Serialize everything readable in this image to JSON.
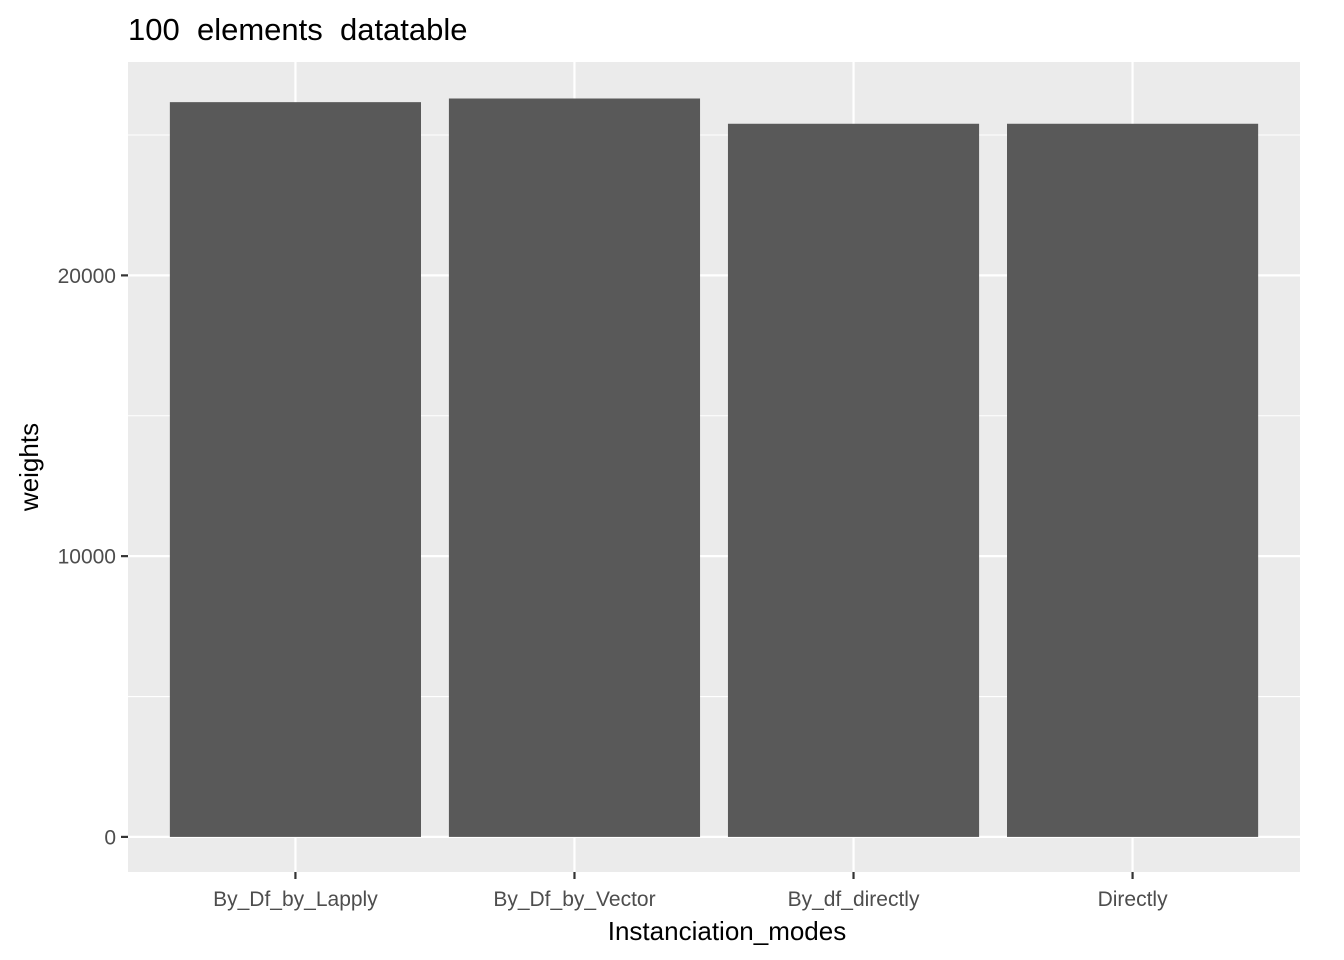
{
  "chart_data": {
    "type": "bar",
    "title": "100  elements  datatable",
    "xlabel": "Instanciation_modes",
    "ylabel": "weights",
    "categories": [
      "By_Df_by_Lapply",
      "By_Df_by_Vector",
      "By_df_directly",
      "Directly"
    ],
    "values": [
      26170,
      26300,
      25400,
      25400
    ],
    "ylim": [
      -1250,
      27600
    ],
    "yticks": [
      0,
      10000,
      20000
    ],
    "ytick_labels": [
      "0",
      "10000",
      "20000"
    ],
    "grid": true,
    "legend": "none",
    "colors": {
      "panel_background": "#EBEBEB",
      "grid": "#FFFFFF",
      "bar_fill": "#595959",
      "tick": "#333333",
      "tick_label": "#4D4D4D"
    }
  }
}
